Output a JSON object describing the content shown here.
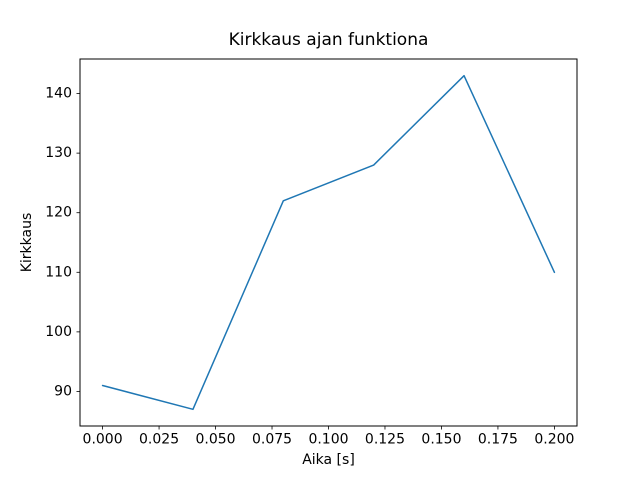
{
  "chart_data": {
    "type": "line",
    "title": "Kirkkaus ajan funktiona",
    "xlabel": "Aika [s]",
    "ylabel": "Kirkkaus",
    "x": [
      0.0,
      0.04,
      0.08,
      0.12,
      0.16,
      0.2
    ],
    "y": [
      91,
      87,
      122,
      128,
      143,
      110
    ],
    "xlim": [
      -0.01,
      0.21
    ],
    "ylim": [
      84.2,
      145.8
    ],
    "x_ticks": [
      0.0,
      0.025,
      0.05,
      0.075,
      0.1,
      0.125,
      0.15,
      0.175,
      0.2
    ],
    "x_tick_labels": [
      "0.000",
      "0.025",
      "0.050",
      "0.075",
      "0.100",
      "0.125",
      "0.150",
      "0.175",
      "0.200"
    ],
    "y_ticks": [
      90,
      100,
      110,
      120,
      130,
      140
    ],
    "y_tick_labels": [
      "90",
      "100",
      "110",
      "120",
      "130",
      "140"
    ],
    "line_color": "#1f77b4",
    "axis_color": "#000000",
    "background_color": "#ffffff",
    "grid": false,
    "legend_position": "none"
  }
}
